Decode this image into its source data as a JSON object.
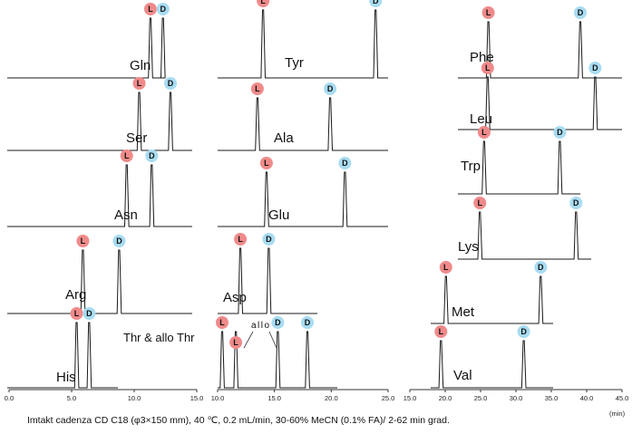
{
  "chart_data": {
    "type": "line",
    "caption": "Imtakt cadenza CD C18 (φ3×150 mm), 40 ℃, 0.2 mL/min, 30-60% MeCN (0.1% FA)/ 2-62 min grad.",
    "unit": "(min)",
    "peak_labels": {
      "L": "L",
      "D": "D"
    },
    "colors": {
      "L": "#f08a8a",
      "D": "#a8dcf2",
      "trace": "#1a1a1a"
    },
    "panels": [
      {
        "name": "panel-1",
        "x_range": [
          0,
          15
        ],
        "ticks": [
          "0.0",
          "5.0",
          "10.0",
          "15.0"
        ],
        "traces": [
          {
            "label": "Gln",
            "L": 11.3,
            "D": 12.3
          },
          {
            "label": "Ser",
            "L": 10.4,
            "D": 12.9
          },
          {
            "label": "Asn",
            "L": 9.4,
            "D": 11.4
          },
          {
            "label": "Arg",
            "L": 5.9,
            "D": 8.8
          },
          {
            "label": "His",
            "L": 5.4,
            "D": 6.4
          }
        ]
      },
      {
        "name": "panel-2",
        "x_range": [
          10,
          25
        ],
        "ticks": [
          "10.0",
          "15.0",
          "20.0",
          "25.0"
        ],
        "traces": [
          {
            "label": "Tyr",
            "L": 14.0,
            "D": 23.9
          },
          {
            "label": "Ala",
            "L": 13.5,
            "D": 19.9
          },
          {
            "label": "Glu",
            "L": 14.3,
            "D": 21.2
          },
          {
            "label": "Asp",
            "L": 12.0,
            "D": 14.5
          },
          {
            "label": "Thr & allo Thr",
            "L": 10.4,
            "L2": 11.6,
            "D": 15.3,
            "D2": 17.9
          }
        ]
      },
      {
        "name": "panel-3",
        "x_range": [
          15,
          45
        ],
        "ticks": [
          "15.0",
          "20.0",
          "25.0",
          "30.0",
          "35.0",
          "40.0",
          "45.0"
        ],
        "traces": [
          {
            "label": "Phe",
            "L": 26.1,
            "D": 39.1
          },
          {
            "label": "Leu",
            "L": 26.0,
            "D": 41.2
          },
          {
            "label": "Trp",
            "L": 25.5,
            "D": 36.2
          },
          {
            "label": "Lys",
            "L": 24.9,
            "D": 38.5
          },
          {
            "label": "Met",
            "L": 20.1,
            "D": 33.5
          },
          {
            "label": "Val",
            "L": 19.4,
            "D": 31.1
          }
        ]
      }
    ],
    "annotations": {
      "thr_allo": "allo"
    }
  }
}
